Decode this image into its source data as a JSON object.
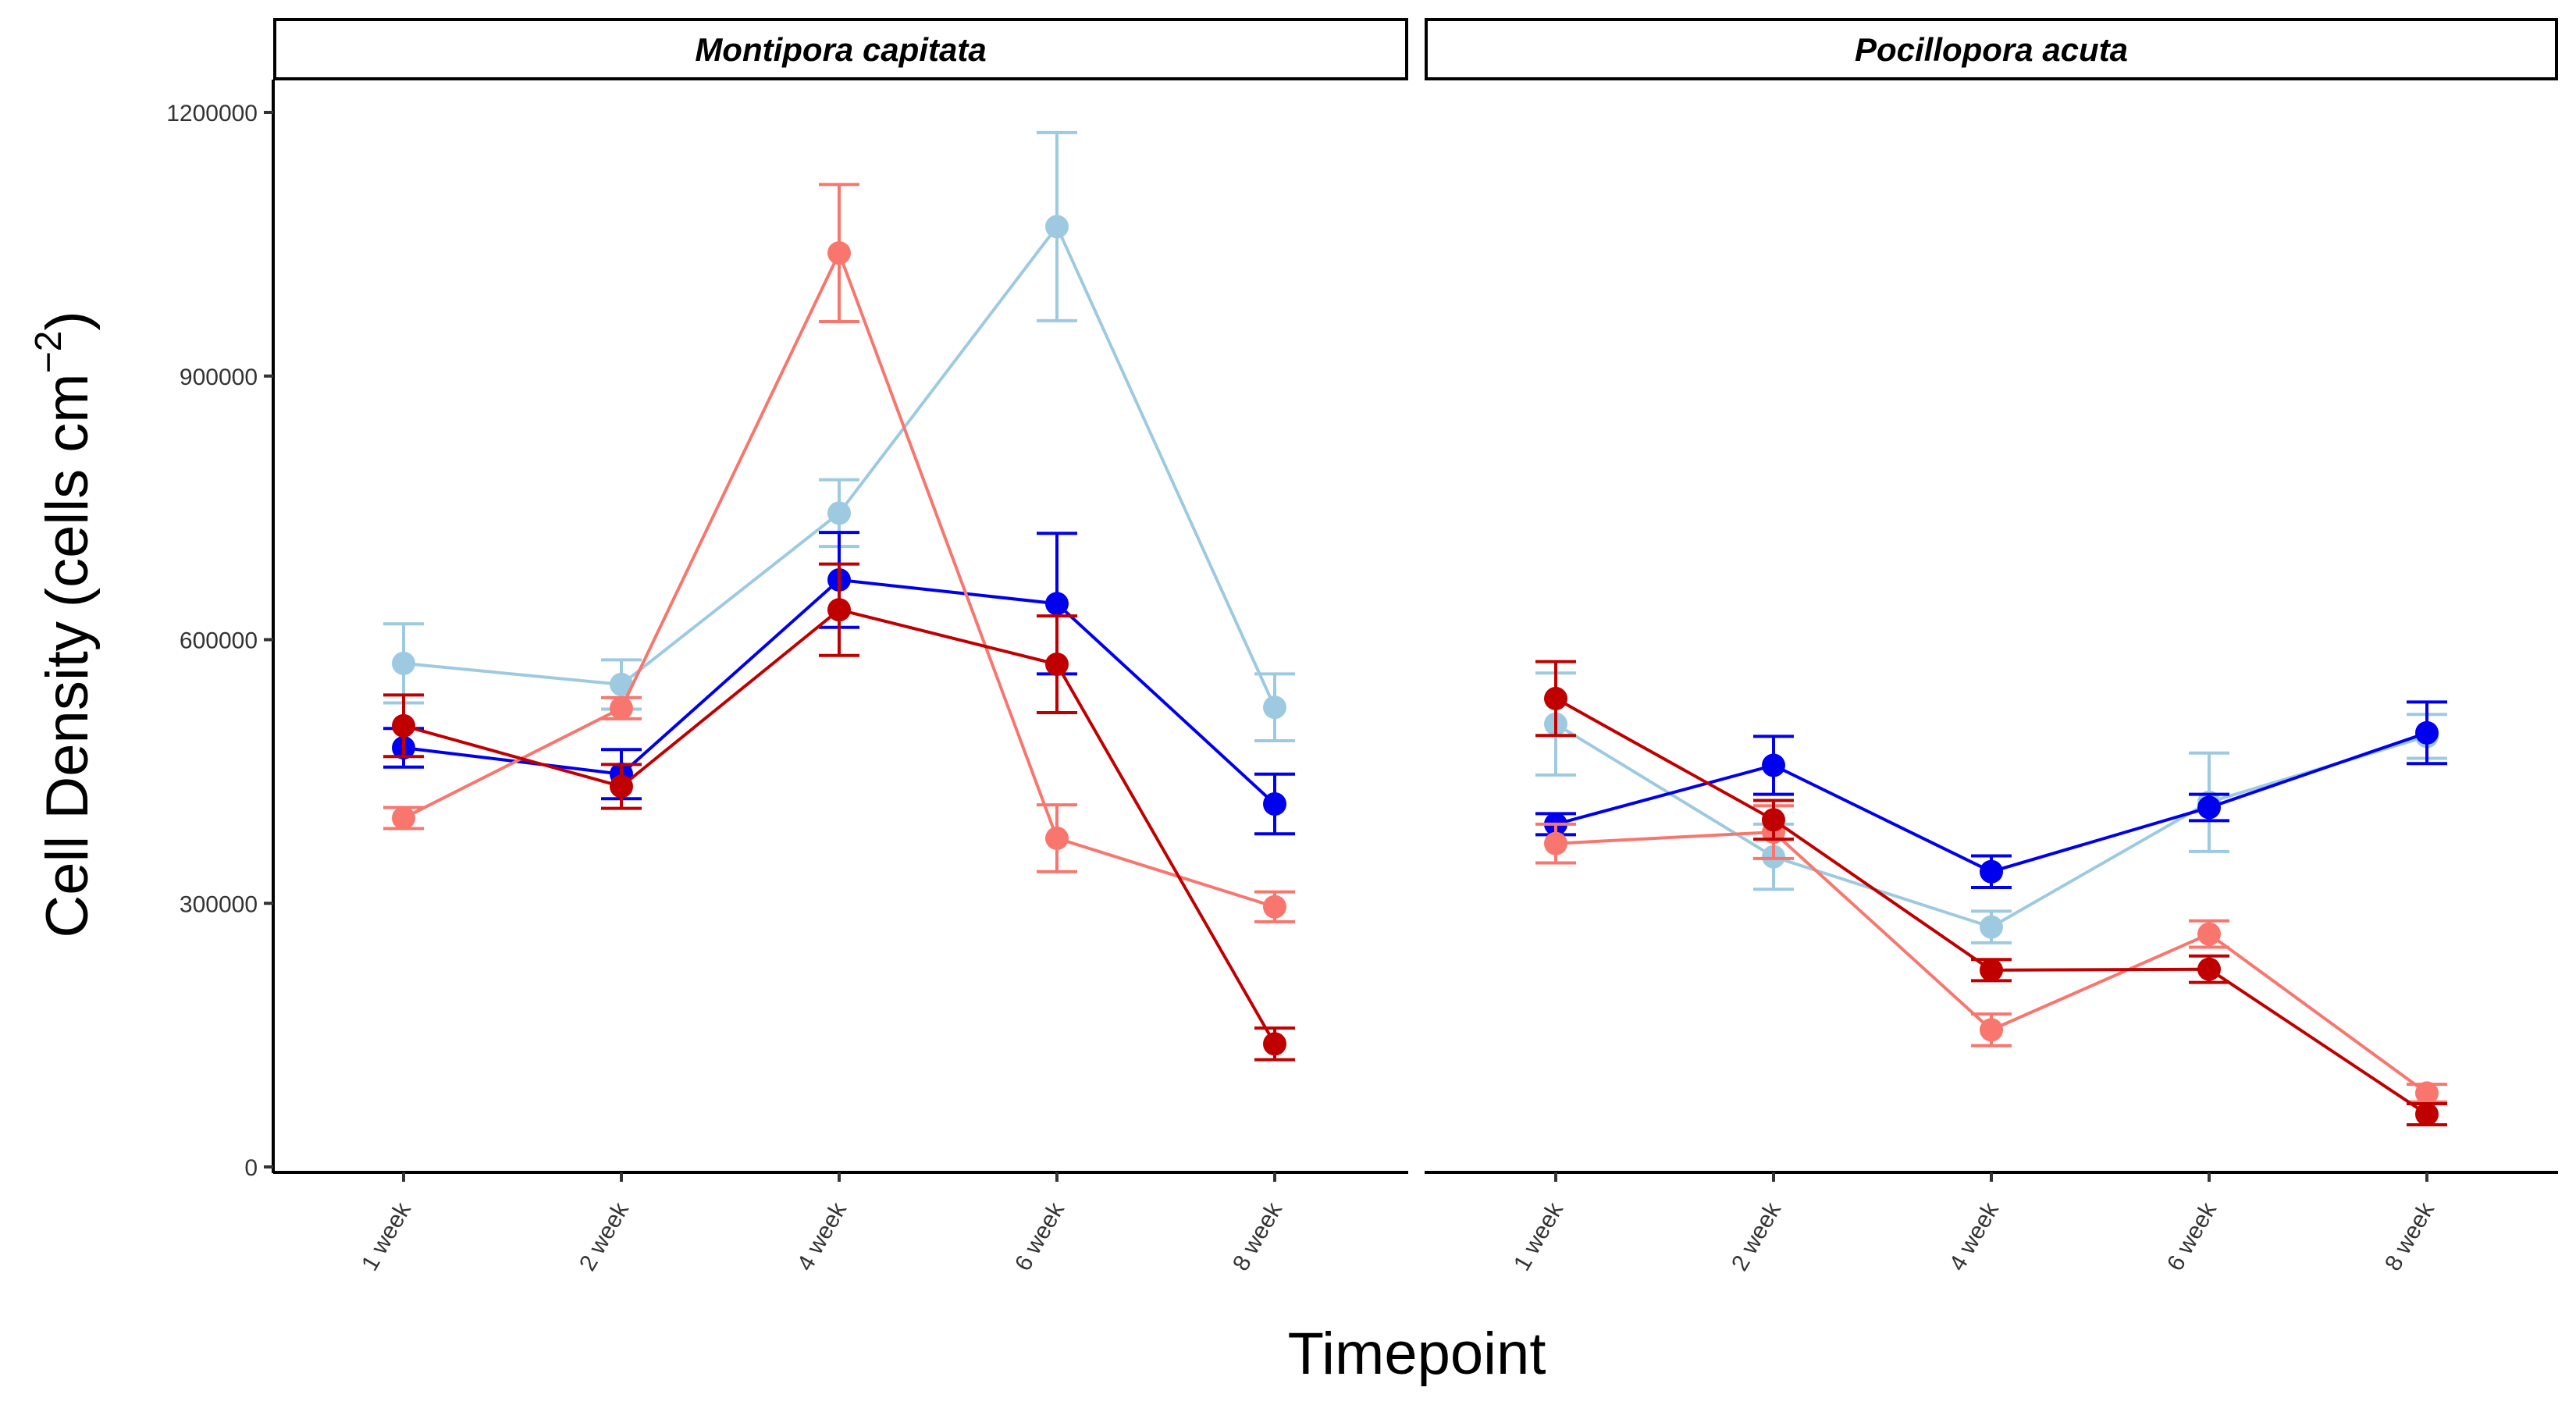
{
  "chart_data": {
    "type": "line",
    "xlabel": "Timepoint",
    "ylabel": {
      "text": "Cell Density",
      "unit_prefix": "cells cm",
      "unit_exponent": "−2"
    },
    "ylim": [
      0,
      1200000
    ],
    "yticks": [
      0,
      300000,
      600000,
      900000,
      1200000
    ],
    "categories": [
      "1 week",
      "2 week",
      "4 week",
      "6 week",
      "8 week"
    ],
    "legend": "none",
    "grid": false,
    "colors": [
      "#9ecae1",
      "#0000ee",
      "#f8766d",
      "#c00000"
    ],
    "panels": [
      {
        "title": "Montipora capitata",
        "series": [
          {
            "color": "#9ecae1",
            "values": [
              573000,
              549000,
              744000,
              1070000,
              523000
            ],
            "err": [
              45000,
              28000,
              38000,
              107000,
              38000
            ]
          },
          {
            "color": "#0000ee",
            "values": [
              477000,
              447000,
              668000,
              641000,
              413000
            ],
            "err": [
              22000,
              28000,
              54000,
              80000,
              34000
            ]
          },
          {
            "color": "#f8766d",
            "values": [
              397000,
              522000,
              1040000,
              374000,
              296000
            ],
            "err": [
              12000,
              12000,
              78000,
              38000,
              17000
            ]
          },
          {
            "color": "#c00000",
            "values": [
              502000,
              433000,
              634000,
              572000,
              140000
            ],
            "err": [
              35000,
              25000,
              52000,
              55000,
              18000
            ]
          }
        ]
      },
      {
        "title": "Pocillopora acuta",
        "series": [
          {
            "color": "#9ecae1",
            "values": [
              504000,
              353000,
              273000,
              415000,
              490000
            ],
            "err": [
              58000,
              37000,
              18000,
              56000,
              25000
            ]
          },
          {
            "color": "#0000ee",
            "values": [
              390000,
              457000,
              336000,
              409000,
              494000
            ],
            "err": [
              12000,
              33000,
              18000,
              15000,
              35000
            ]
          },
          {
            "color": "#f8766d",
            "values": [
              368000,
              381000,
              156000,
              265000,
              84000
            ],
            "err": [
              22000,
              30000,
              18000,
              15000,
              10000
            ]
          },
          {
            "color": "#c00000",
            "values": [
              533000,
              395000,
              224000,
              225000,
              60000
            ],
            "err": [
              42000,
              22000,
              12000,
              15000,
              12000
            ]
          }
        ]
      }
    ]
  }
}
